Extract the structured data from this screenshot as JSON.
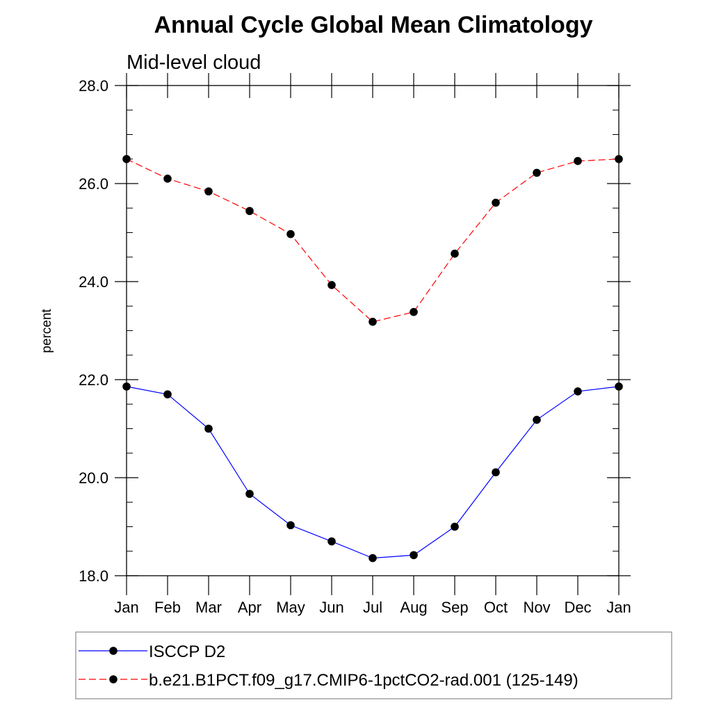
{
  "chart_data": {
    "type": "line",
    "title": "Annual Cycle Global Mean Climatology",
    "subtitle": "Mid-level cloud",
    "xlabel": "",
    "ylabel": "percent",
    "categories": [
      "Jan",
      "Feb",
      "Mar",
      "Apr",
      "May",
      "Jun",
      "Jul",
      "Aug",
      "Sep",
      "Oct",
      "Nov",
      "Dec",
      "Jan"
    ],
    "ylim": [
      18.0,
      28.0
    ],
    "yticks": [
      "18.0",
      "20.0",
      "22.0",
      "24.0",
      "26.0",
      "28.0"
    ],
    "ytick_values": [
      18,
      20,
      22,
      24,
      26,
      28
    ],
    "y_minor_step": 0.5,
    "grid": false,
    "legend_position": "bottom",
    "series": [
      {
        "name": "ISCCP D2",
        "color": "#0000ff",
        "style": "solid",
        "marker": "circle",
        "values": [
          21.86,
          21.7,
          21.0,
          19.67,
          19.03,
          18.7,
          18.36,
          18.42,
          19.0,
          20.11,
          21.18,
          21.76,
          21.86
        ]
      },
      {
        "name": "b.e21.B1PCT.f09_g17.CMIP6-1pctCO2-rad.001 (125-149)",
        "color": "#ff0000",
        "style": "dashed",
        "marker": "circle",
        "values": [
          26.5,
          26.1,
          25.84,
          25.44,
          24.97,
          23.93,
          23.18,
          23.38,
          24.57,
          25.61,
          26.22,
          26.46,
          26.5
        ]
      }
    ]
  }
}
